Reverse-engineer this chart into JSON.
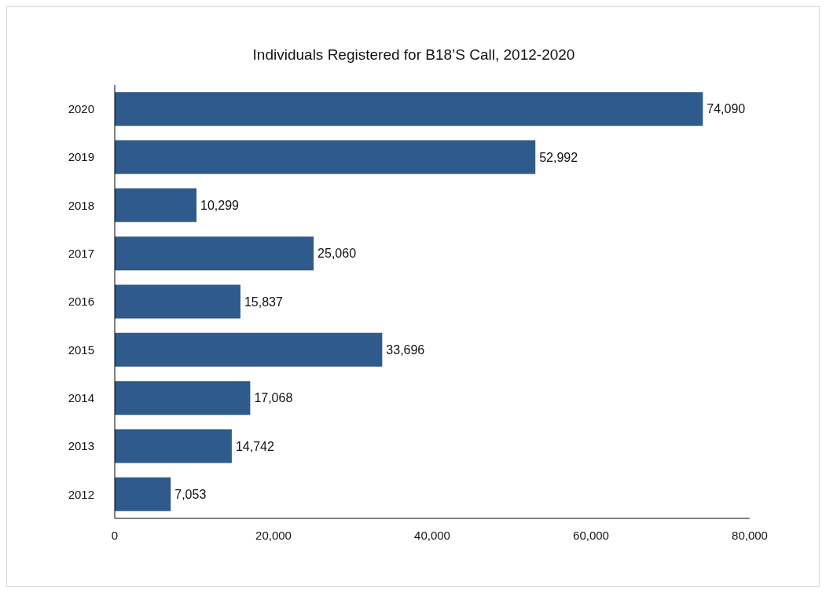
{
  "chart_data": {
    "type": "bar",
    "orientation": "horizontal",
    "title": "Individuals Registered for B18’S Call, 2012-2020",
    "categories": [
      "2020",
      "2019",
      "2018",
      "2017",
      "2016",
      "2015",
      "2014",
      "2013",
      "2012"
    ],
    "values": [
      74090,
      52992,
      10299,
      25060,
      15837,
      33696,
      17068,
      14742,
      7053
    ],
    "color": "#2e5a8c",
    "xlim": [
      0,
      80000
    ],
    "xticks": [
      0,
      {
        "value": 20000,
        "label": "20,000"
      },
      {
        "value": 40000,
        "label": "40,000"
      },
      {
        "value": 60000,
        "label": "60,000"
      },
      {
        "value": 80000,
        "label": "80,000"
      }
    ],
    "value_labels": [
      "74,090",
      "52,992",
      "10,299",
      "25,060",
      "15,837",
      "33,696",
      "17,068",
      "14,742",
      "7,053"
    ],
    "grid": false,
    "legend": false
  }
}
